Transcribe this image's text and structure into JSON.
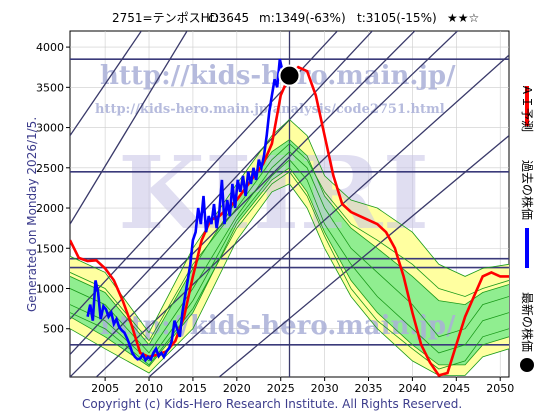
{
  "header": {
    "code_name": "2751=テンポスHD",
    "c": "c:3645",
    "m": "m:1349(-63%)",
    "t": "t:3105(-15%)",
    "stars": "★★☆"
  },
  "generated": "Generated on Monday 2026/1/5.",
  "copyright": "Copyright (c) Kids-Hero Research Institute. All Rights Reserved.",
  "watermark": {
    "url1": "http://kids-hero.main.jp/",
    "url2": "http://kids-hero.main.jp/analysis/code2751.html",
    "big": "KHRI",
    "url3": "http://kids-hero.main.jp/"
  },
  "legend": [
    {
      "label": "ＡＩ予測",
      "color": "#ff0000"
    },
    {
      "label": "過去の株価",
      "color": "#0000ff"
    },
    {
      "label": "最新の株価",
      "color": "#000000"
    }
  ],
  "colors": {
    "ai_band_outer": "#ffffa0",
    "ai_band_inner": "#90ee90",
    "ai_lines": "#1a9a1a",
    "ai_pred": "#ff0000",
    "price": "#0000ff",
    "channel": "#3a3a6a",
    "level": "#3a3a7a",
    "plot_bg": "#ffffff",
    "grid": "#cccccc"
  },
  "chart_data": {
    "type": "line",
    "xlim": [
      2001,
      2051
    ],
    "ylim": [
      -100,
      4200
    ],
    "xticks": [
      2005,
      2010,
      2015,
      2020,
      2025,
      2030,
      2035,
      2040,
      2045,
      2050
    ],
    "yticks": [
      500,
      1000,
      1500,
      2000,
      2500,
      3000,
      3500,
      4000
    ],
    "latest_point": {
      "x": 2026.0,
      "y": 3645
    },
    "now_x": 2026.0,
    "levels": [
      3850,
      2450,
      1370,
      1260,
      300
    ],
    "channel_lines": [
      [
        [
          2001,
          620
        ],
        [
          2034,
          4500
        ]
      ],
      [
        [
          2001,
          180
        ],
        [
          2038,
          4500
        ]
      ],
      [
        [
          2001,
          -100
        ],
        [
          2043,
          4500
        ]
      ],
      [
        [
          2004,
          -100
        ],
        [
          2048,
          4500
        ]
      ],
      [
        [
          2010,
          -100
        ],
        [
          2051,
          3900
        ]
      ],
      [
        [
          2018,
          -100
        ],
        [
          2051,
          2900
        ]
      ],
      [
        [
          2001,
          1800
        ],
        [
          2016,
          4500
        ]
      ],
      [
        [
          2001,
          2900
        ],
        [
          2011,
          4500
        ]
      ]
    ],
    "series": [
      {
        "name": "過去の株価",
        "x": [
          2003.0,
          2003.3,
          2003.6,
          2003.9,
          2004.2,
          2004.5,
          2004.8,
          2005.1,
          2005.4,
          2005.7,
          2006.0,
          2006.3,
          2006.6,
          2006.9,
          2007.2,
          2007.5,
          2007.8,
          2008.1,
          2008.4,
          2008.7,
          2009.0,
          2009.3,
          2009.6,
          2009.9,
          2010.2,
          2010.5,
          2010.8,
          2011.1,
          2011.4,
          2011.7,
          2012.0,
          2012.3,
          2012.6,
          2012.9,
          2013.2,
          2013.5,
          2013.8,
          2014.1,
          2014.4,
          2014.7,
          2015.0,
          2015.3,
          2015.6,
          2015.9,
          2016.2,
          2016.5,
          2016.8,
          2017.1,
          2017.4,
          2017.7,
          2018.0,
          2018.3,
          2018.6,
          2018.9,
          2019.2,
          2019.5,
          2019.8,
          2020.1,
          2020.4,
          2020.7,
          2021.0,
          2021.3,
          2021.6,
          2021.9,
          2022.2,
          2022.5,
          2022.8,
          2023.1,
          2023.4,
          2023.7,
          2024.0,
          2024.3,
          2024.6,
          2024.9,
          2025.2,
          2025.5,
          2025.8
        ],
        "y": [
          650,
          800,
          600,
          1100,
          950,
          620,
          780,
          740,
          650,
          700,
          560,
          620,
          520,
          480,
          450,
          380,
          300,
          200,
          150,
          120,
          130,
          180,
          110,
          150,
          120,
          200,
          250,
          160,
          200,
          150,
          220,
          260,
          350,
          600,
          500,
          400,
          700,
          900,
          1100,
          1300,
          1600,
          1700,
          2000,
          1800,
          2150,
          1700,
          1900,
          1800,
          2050,
          1750,
          1950,
          2350,
          1800,
          2100,
          1900,
          2300,
          2000,
          2350,
          2200,
          2400,
          2150,
          2450,
          2300,
          2500,
          2350,
          2600,
          2500,
          2650,
          2900,
          3200,
          3400,
          3600,
          3500,
          3850,
          3700,
          3600,
          3645
        ]
      },
      {
        "name": "ＡＩ予測",
        "x": [
          2001,
          2002,
          2003,
          2004,
          2005,
          2006,
          2007,
          2008,
          2009,
          2010,
          2011,
          2012,
          2013,
          2014,
          2015,
          2016,
          2017,
          2018,
          2019,
          2020,
          2021,
          2022,
          2023,
          2024,
          2025,
          2026,
          2027,
          2028,
          2029,
          2030,
          2031,
          2032,
          2033,
          2034,
          2035,
          2036,
          2037,
          2038,
          2039,
          2040,
          2041,
          2042,
          2043,
          2044,
          2045,
          2046,
          2047,
          2048,
          2049,
          2050,
          2051
        ],
        "y": [
          1600,
          1380,
          1340,
          1350,
          1250,
          1100,
          850,
          550,
          200,
          150,
          180,
          220,
          350,
          650,
          1150,
          1600,
          1850,
          1900,
          2000,
          2100,
          2250,
          2400,
          2550,
          2800,
          3400,
          3650,
          3750,
          3700,
          3400,
          2900,
          2400,
          2050,
          1950,
          1900,
          1850,
          1800,
          1700,
          1500,
          1150,
          700,
          300,
          80,
          -80,
          -50,
          300,
          650,
          900,
          1150,
          1200,
          1150,
          1150
        ]
      },
      {
        "name": "band_upper_outer",
        "x": [
          2001,
          2005,
          2010,
          2015,
          2020,
          2024,
          2026,
          2028,
          2030,
          2033,
          2036,
          2040,
          2043,
          2046,
          2048,
          2051
        ],
        "y": [
          1400,
          1200,
          450,
          1500,
          2300,
          2900,
          3100,
          2900,
          2400,
          2100,
          2000,
          1700,
          1300,
          1150,
          1250,
          1300
        ]
      },
      {
        "name": "band_lower_outer",
        "x": [
          2001,
          2005,
          2010,
          2015,
          2020,
          2024,
          2026,
          2028,
          2030,
          2033,
          2036,
          2040,
          2043,
          2046,
          2048,
          2051
        ],
        "y": [
          500,
          250,
          -50,
          500,
          1600,
          2200,
          2300,
          2000,
          1500,
          900,
          500,
          100,
          -80,
          -80,
          150,
          250
        ]
      },
      {
        "name": "band_upper_inner",
        "x": [
          2001,
          2005,
          2010,
          2015,
          2020,
          2024,
          2026,
          2028,
          2030,
          2033,
          2036,
          2040,
          2043,
          2046,
          2048,
          2051
        ],
        "y": [
          1150,
          950,
          300,
          1250,
          2100,
          2700,
          2850,
          2650,
          2150,
          1750,
          1500,
          1150,
          850,
          800,
          950,
          1050
        ]
      },
      {
        "name": "band_lower_inner",
        "x": [
          2001,
          2005,
          2010,
          2015,
          2020,
          2024,
          2026,
          2028,
          2030,
          2033,
          2036,
          2040,
          2043,
          2046,
          2048,
          2051
        ],
        "y": [
          650,
          400,
          30,
          700,
          1800,
          2350,
          2500,
          2200,
          1700,
          1100,
          700,
          300,
          50,
          50,
          300,
          400
        ]
      },
      {
        "name": "ai_line_a",
        "x": [
          2001,
          2005,
          2010,
          2015,
          2020,
          2024,
          2026,
          2028,
          2030,
          2033,
          2036,
          2040,
          2043,
          2046,
          2048,
          2051
        ],
        "y": [
          1000,
          800,
          200,
          1000,
          1900,
          2500,
          2700,
          2500,
          2000,
          1500,
          1200,
          800,
          400,
          500,
          800,
          900
        ]
      },
      {
        "name": "ai_line_b",
        "x": [
          2001,
          2005,
          2010,
          2015,
          2020,
          2024,
          2026,
          2028,
          2030,
          2033,
          2036,
          2040,
          2043,
          2046,
          2048,
          2051
        ],
        "y": [
          800,
          600,
          100,
          850,
          1850,
          2400,
          2600,
          2350,
          1800,
          1300,
          900,
          500,
          200,
          300,
          600,
          700
        ]
      },
      {
        "name": "ai_line_c",
        "x": [
          2001,
          2005,
          2010,
          2015,
          2020,
          2024,
          2026,
          2028,
          2030,
          2033,
          2036,
          2040,
          2043,
          2046,
          2048,
          2051
        ],
        "y": [
          1200,
          1000,
          350,
          1300,
          2000,
          2600,
          2800,
          2600,
          2200,
          1800,
          1600,
          1300,
          1000,
          900,
          1000,
          1100
        ]
      },
      {
        "name": "ai_line_d",
        "x": [
          2001,
          2005,
          2010,
          2015,
          2020,
          2024,
          2026,
          2028,
          2030,
          2033,
          2036,
          2040,
          2043,
          2046,
          2048,
          2051
        ],
        "y": [
          700,
          500,
          50,
          750,
          1750,
          2300,
          2450,
          2150,
          1650,
          1000,
          600,
          250,
          0,
          100,
          400,
          500
        ]
      }
    ]
  }
}
